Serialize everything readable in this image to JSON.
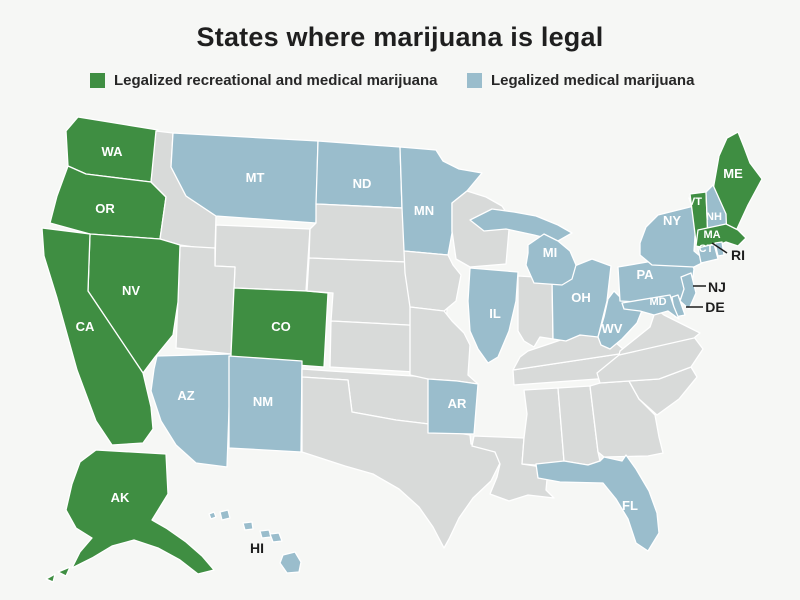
{
  "title": "States where marijuana is legal",
  "legend": {
    "recreational_medical_label": "Legalized recreational and medical marijuana",
    "medical_label": "Legalized medical marijuana"
  },
  "colors": {
    "recreational_medical": "#3f8e42",
    "medical": "#9abdcc",
    "none": "#d8dad9",
    "state_border": "#ffffff",
    "background": "#f6f7f5",
    "label_on_state": "#ffffff",
    "label_dark": "#1d1d1d"
  },
  "map": {
    "status_by_state": {
      "WA": "recreational_medical",
      "OR": "recreational_medical",
      "CA": "recreational_medical",
      "NV": "recreational_medical",
      "CO": "recreational_medical",
      "AK": "recreational_medical",
      "ME": "recreational_medical",
      "VT": "recreational_medical",
      "MA": "recreational_medical",
      "MT": "medical",
      "ND": "medical",
      "MN": "medical",
      "MI": "medical",
      "IL": "medical",
      "OH": "medical",
      "WV": "medical",
      "PA": "medical",
      "NY": "medical",
      "NH": "medical",
      "CT": "medical",
      "RI": "medical",
      "NJ": "medical",
      "DE": "medical",
      "MD": "medical",
      "AZ": "medical",
      "NM": "medical",
      "AR": "medical",
      "FL": "medical",
      "HI": "medical",
      "ID": "none",
      "UT": "none",
      "WY": "none",
      "SD": "none",
      "NE": "none",
      "KS": "none",
      "OK": "none",
      "TX": "none",
      "IA": "none",
      "MO": "none",
      "LA": "none",
      "WI": "none",
      "IN": "none",
      "KY": "none",
      "TN": "none",
      "MS": "none",
      "AL": "none",
      "GA": "none",
      "SC": "none",
      "NC": "none",
      "VA": "none"
    },
    "labels_on_state": [
      "WA",
      "OR",
      "CA",
      "NV",
      "AZ",
      "NM",
      "CO",
      "MT",
      "ND",
      "MN",
      "AR",
      "IL",
      "MI",
      "OH",
      "WV",
      "PA",
      "NY",
      "MD",
      "FL",
      "VT",
      "NH",
      "MA",
      "CT",
      "ME",
      "AK"
    ],
    "callout_labels": [
      "RI",
      "NJ",
      "DE"
    ],
    "adjacent_labels": [
      "HI"
    ]
  }
}
